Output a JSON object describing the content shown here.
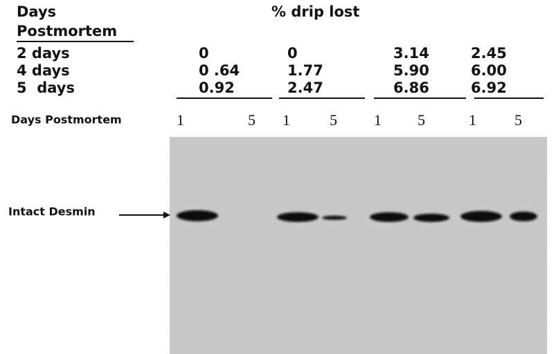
{
  "header": {
    "days": "Days",
    "postmortem": "Postmortem",
    "drip": "% drip lost"
  },
  "rows": [
    {
      "label": "2 days",
      "values": [
        "0",
        "0",
        "3.14",
        "2.45"
      ]
    },
    {
      "label": "4 days",
      "values": [
        "0 .64",
        "1.77",
        "5.90",
        "6.00"
      ]
    },
    {
      "label": "5  days",
      "values": [
        "0.92",
        "2.47",
        "6.86",
        "6.92"
      ]
    }
  ],
  "lanes": {
    "label": "Days Postmortem",
    "labels": [
      "1",
      "5",
      "1",
      "5",
      "1",
      "5",
      "1",
      "5"
    ]
  },
  "blot": {
    "band_label": "Intact Desmin"
  }
}
